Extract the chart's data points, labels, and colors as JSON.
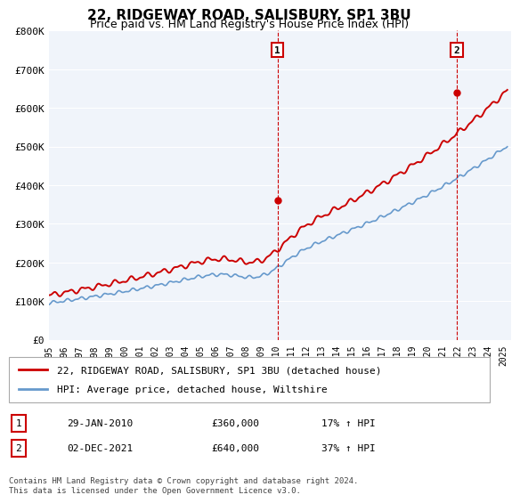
{
  "title": "22, RIDGEWAY ROAD, SALISBURY, SP1 3BU",
  "subtitle": "Price paid vs. HM Land Registry's House Price Index (HPI)",
  "ylabel_ticks": [
    "£0",
    "£100K",
    "£200K",
    "£300K",
    "£400K",
    "£500K",
    "£600K",
    "£700K",
    "£800K"
  ],
  "ylim": [
    0,
    800000
  ],
  "xlim_start": 1995.0,
  "xlim_end": 2025.5,
  "hpi_color": "#6699cc",
  "price_color": "#cc0000",
  "marker1_x": 2010.08,
  "marker1_y": 360000,
  "marker1_label": "1",
  "marker2_x": 2021.92,
  "marker2_y": 640000,
  "marker2_label": "2",
  "legend_entry1": "22, RIDGEWAY ROAD, SALISBURY, SP1 3BU (detached house)",
  "legend_entry2": "HPI: Average price, detached house, Wiltshire",
  "table_row1": [
    "1",
    "29-JAN-2010",
    "£360,000",
    "17% ↑ HPI"
  ],
  "table_row2": [
    "2",
    "02-DEC-2021",
    "£640,000",
    "37% ↑ HPI"
  ],
  "footnote": "Contains HM Land Registry data © Crown copyright and database right 2024.\nThis data is licensed under the Open Government Licence v3.0.",
  "bg_color": "#ffffff",
  "plot_bg_color": "#f0f4fa",
  "grid_color": "#ffffff"
}
